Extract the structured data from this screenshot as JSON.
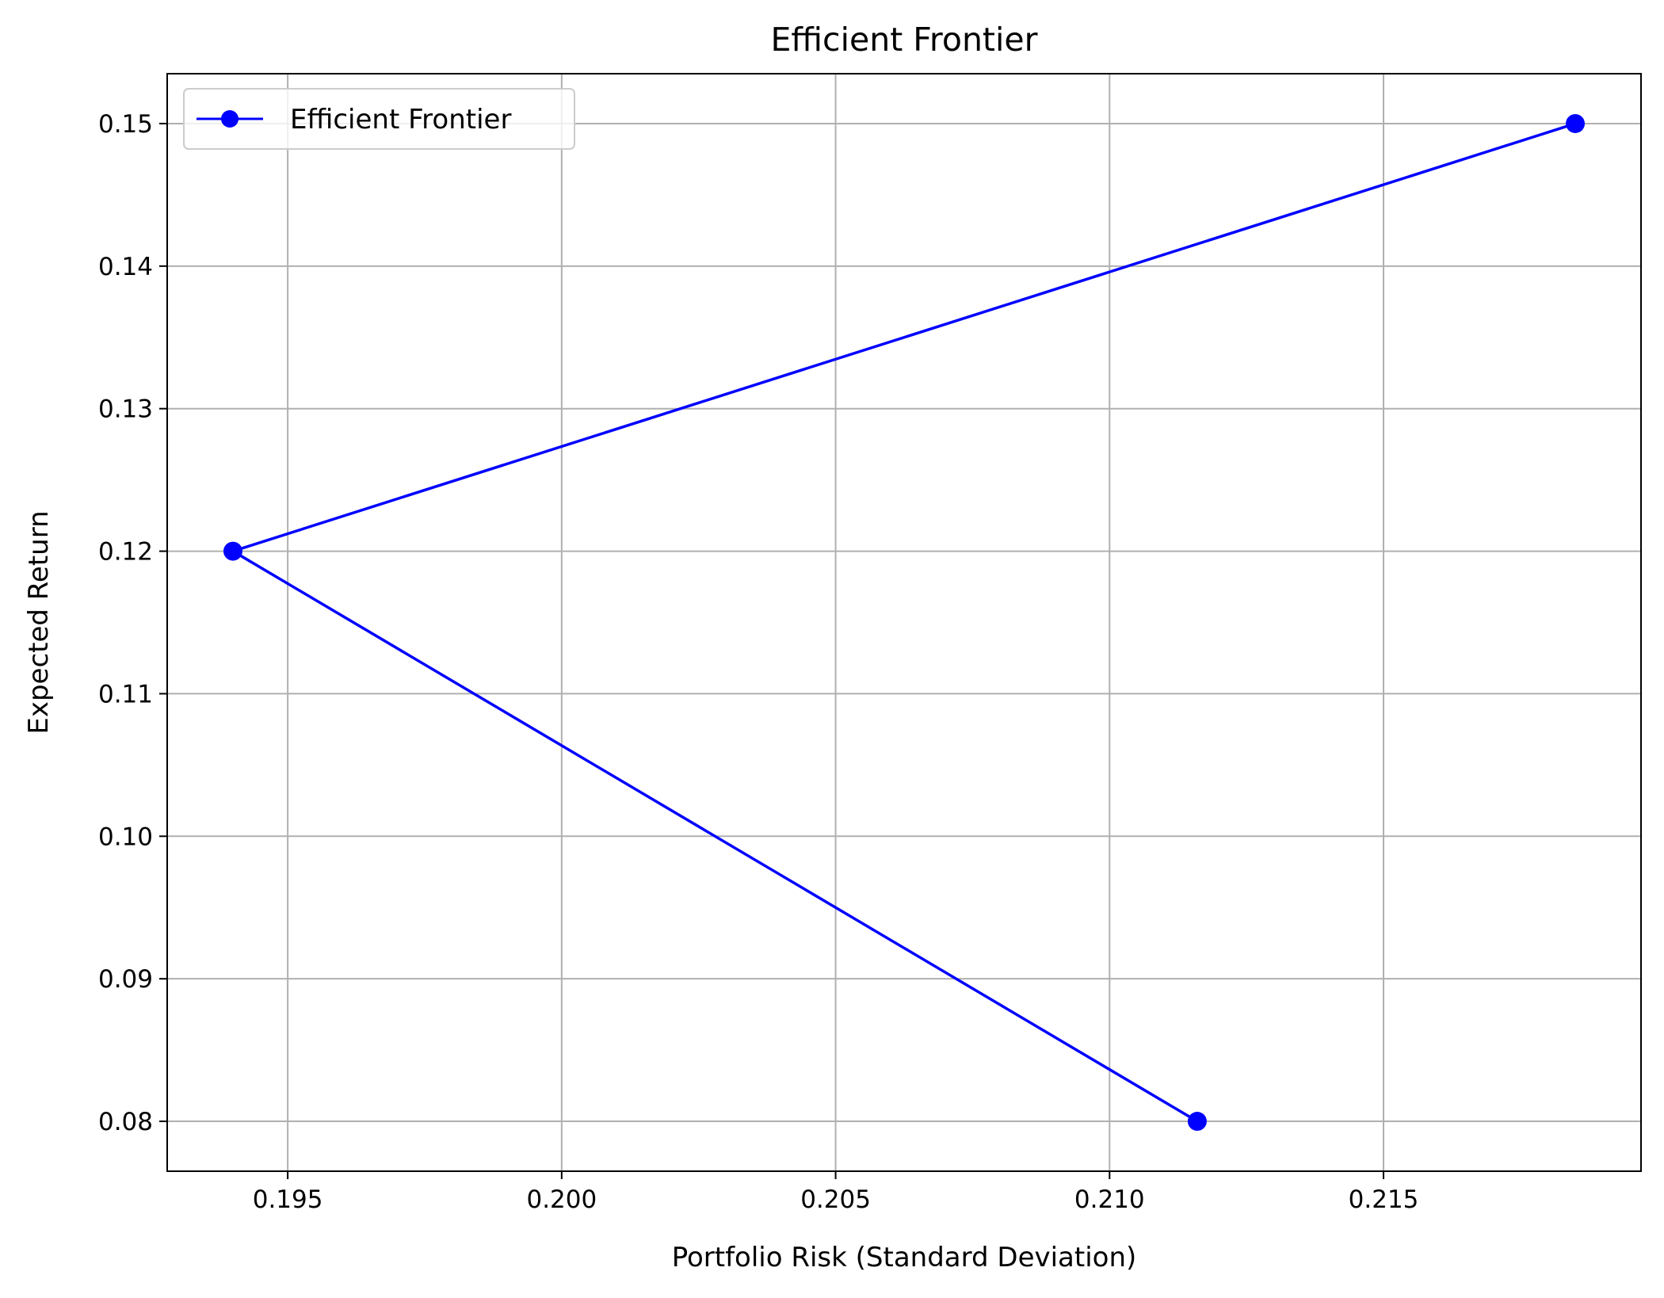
{
  "chart_data": {
    "type": "line",
    "title": "Efficient Frontier",
    "xlabel": "Portfolio Risk (Standard Deviation)",
    "ylabel": "Expected Return",
    "xlim": [
      0.1928,
      0.2197
    ],
    "ylim": [
      0.0765,
      0.1535
    ],
    "xticks": [
      0.195,
      0.2,
      0.205,
      0.21,
      0.215
    ],
    "xtick_labels": [
      "0.195",
      "0.200",
      "0.205",
      "0.210",
      "0.215"
    ],
    "yticks": [
      0.08,
      0.09,
      0.1,
      0.11,
      0.12,
      0.13,
      0.14,
      0.15
    ],
    "ytick_labels": [
      "0.08",
      "0.09",
      "0.10",
      "0.11",
      "0.12",
      "0.13",
      "0.14",
      "0.15"
    ],
    "grid": true,
    "legend_position": "top-left",
    "series": [
      {
        "name": "Efficient Frontier",
        "color": "#0000ff",
        "marker": "circle",
        "x": [
          0.2116,
          0.194,
          0.2185
        ],
        "y": [
          0.08,
          0.12,
          0.15
        ]
      }
    ]
  }
}
